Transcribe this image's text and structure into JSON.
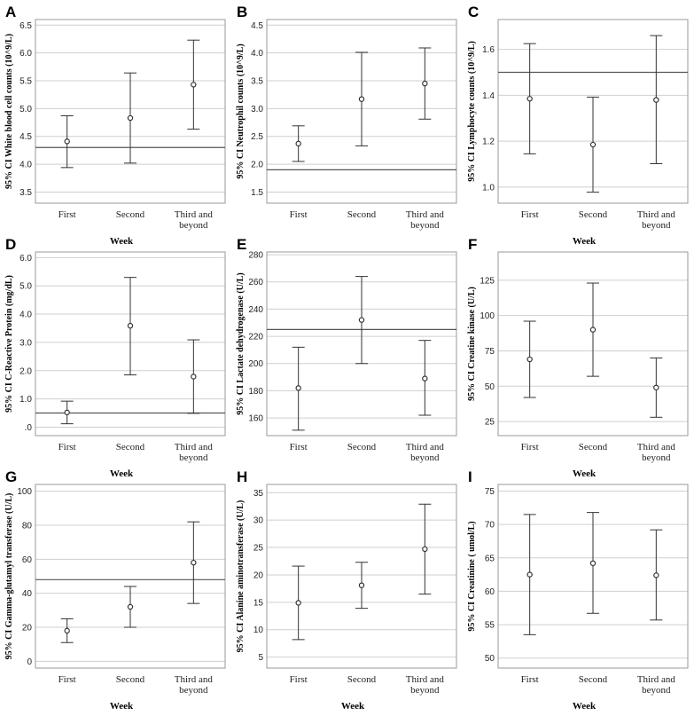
{
  "chart_data": [
    {
      "type": "errorbar",
      "panel_label": "A",
      "ylabel": "95% CI White blood cell counts (10^9/L)",
      "xlabel": "Week",
      "categories": [
        "First",
        "Second",
        "Third and\nbeyond"
      ],
      "mean": [
        4.41,
        4.83,
        5.43
      ],
      "lower": [
        3.94,
        4.02,
        4.63
      ],
      "upper": [
        4.87,
        5.64,
        6.23
      ],
      "reference_line": 4.3,
      "ylim": [
        3.3,
        6.6
      ],
      "yticks": [
        "3.5",
        "4.0",
        "4.5",
        "5.0",
        "5.5",
        "6.0",
        "6.5"
      ],
      "ytick_values": [
        3.5,
        4.0,
        4.5,
        5.0,
        5.5,
        6.0,
        6.5
      ]
    },
    {
      "type": "errorbar",
      "panel_label": "B",
      "ylabel": "95% CI Neutrophil counts (10^9/L)",
      "xlabel": "",
      "categories": [
        "First",
        "Second",
        "Third and\nbeyond"
      ],
      "mean": [
        2.37,
        3.17,
        3.45
      ],
      "lower": [
        2.05,
        2.33,
        2.81
      ],
      "upper": [
        2.69,
        4.01,
        4.09
      ],
      "reference_line": 1.9,
      "ylim": [
        1.3,
        4.6
      ],
      "yticks": [
        "1.5",
        "2.0",
        "2.5",
        "3.0",
        "3.5",
        "4.0",
        "4.5"
      ],
      "ytick_values": [
        1.5,
        2.0,
        2.5,
        3.0,
        3.5,
        4.0,
        4.5
      ]
    },
    {
      "type": "errorbar",
      "panel_label": "C",
      "ylabel": "95% CI Lymphocyte counts (10^9/L)",
      "xlabel": "Week",
      "categories": [
        "First",
        "Second",
        "Third and\nbeyond"
      ],
      "mean": [
        1.385,
        1.185,
        1.38
      ],
      "lower": [
        1.145,
        0.978,
        1.102
      ],
      "upper": [
        1.625,
        1.392,
        1.66
      ],
      "reference_line": 1.5,
      "ylim": [
        0.93,
        1.73
      ],
      "yticks": [
        "1.0",
        "1.2",
        "1.4",
        "1.6"
      ],
      "ytick_values": [
        1.0,
        1.2,
        1.4,
        1.6
      ]
    },
    {
      "type": "errorbar",
      "panel_label": "D",
      "ylabel": "95% CI C-Reactive Protein (mg/dL)",
      "xlabel": "Week",
      "categories": [
        "First",
        "Second",
        "Third and\nbeyond"
      ],
      "mean": [
        0.52,
        3.59,
        1.79
      ],
      "lower": [
        0.12,
        1.85,
        0.49
      ],
      "upper": [
        0.92,
        5.3,
        3.09
      ],
      "reference_line": 0.5,
      "ylim": [
        -0.3,
        6.2
      ],
      "yticks": [
        ".0",
        "1.0",
        "2.0",
        "3.0",
        "4.0",
        "5.0",
        "6.0"
      ],
      "ytick_values": [
        0,
        1,
        2,
        3,
        4,
        5,
        6
      ]
    },
    {
      "type": "errorbar",
      "panel_label": "E",
      "ylabel": "95% CI Lactate dehydrogenase (U/L)",
      "xlabel": "",
      "categories": [
        "First",
        "Second",
        "Third and\nbeyond"
      ],
      "mean": [
        182,
        232,
        189
      ],
      "lower": [
        151,
        200,
        162
      ],
      "upper": [
        212,
        264,
        217
      ],
      "reference_line": 225,
      "ylim": [
        147,
        282
      ],
      "yticks": [
        "160",
        "180",
        "200",
        "220",
        "240",
        "260",
        "280"
      ],
      "ytick_values": [
        160,
        180,
        200,
        220,
        240,
        260,
        280
      ]
    },
    {
      "type": "errorbar",
      "panel_label": "F",
      "ylabel": "95% CI Creatine kinase (U/L)",
      "xlabel": "Week",
      "categories": [
        "First",
        "Second",
        "Third and\nbeyond"
      ],
      "mean": [
        69,
        90,
        49
      ],
      "lower": [
        42,
        57,
        28
      ],
      "upper": [
        96,
        123,
        70
      ],
      "reference_line": null,
      "ylim": [
        15,
        145
      ],
      "yticks": [
        "25",
        "50",
        "75",
        "100",
        "125"
      ],
      "ytick_values": [
        25,
        50,
        75,
        100,
        125
      ]
    },
    {
      "type": "errorbar",
      "panel_label": "G",
      "ylabel": "95% CI Gamma-glutamyl transferase (U/L)",
      "xlabel": "Week",
      "categories": [
        "First",
        "Second",
        "Third and\nbeyond"
      ],
      "mean": [
        18,
        32,
        58
      ],
      "lower": [
        11,
        20,
        34
      ],
      "upper": [
        25,
        44,
        82
      ],
      "reference_line": 48,
      "ylim": [
        -4,
        104
      ],
      "yticks": [
        "0",
        "20",
        "40",
        "60",
        "80",
        "100"
      ],
      "ytick_values": [
        0,
        20,
        40,
        60,
        80,
        100
      ]
    },
    {
      "type": "errorbar",
      "panel_label": "H",
      "ylabel": "95% CI Alanine aminotransferase (U/L)",
      "xlabel": "Week",
      "categories": [
        "First",
        "Second",
        "Third and\nbeyond"
      ],
      "mean": [
        14.9,
        18.1,
        24.7
      ],
      "lower": [
        8.2,
        13.9,
        16.5
      ],
      "upper": [
        21.6,
        22.3,
        32.9
      ],
      "reference_line": null,
      "ylim": [
        3,
        36.5
      ],
      "yticks": [
        "5",
        "10",
        "15",
        "20",
        "25",
        "30",
        "35"
      ],
      "ytick_values": [
        5,
        10,
        15,
        20,
        25,
        30,
        35
      ]
    },
    {
      "type": "errorbar",
      "panel_label": "I",
      "ylabel": "95% CI Creatinine ( umol/L)",
      "xlabel": "Week",
      "categories": [
        "First",
        "Second",
        "Third and\nbeyond"
      ],
      "mean": [
        62.5,
        64.2,
        62.4
      ],
      "lower": [
        53.5,
        56.7,
        55.7
      ],
      "upper": [
        71.5,
        71.8,
        69.2
      ],
      "reference_line": null,
      "ylim": [
        48.5,
        76
      ],
      "yticks": [
        "50",
        "55",
        "60",
        "65",
        "70",
        "75"
      ],
      "ytick_values": [
        50,
        55,
        60,
        65,
        70,
        75
      ]
    }
  ]
}
